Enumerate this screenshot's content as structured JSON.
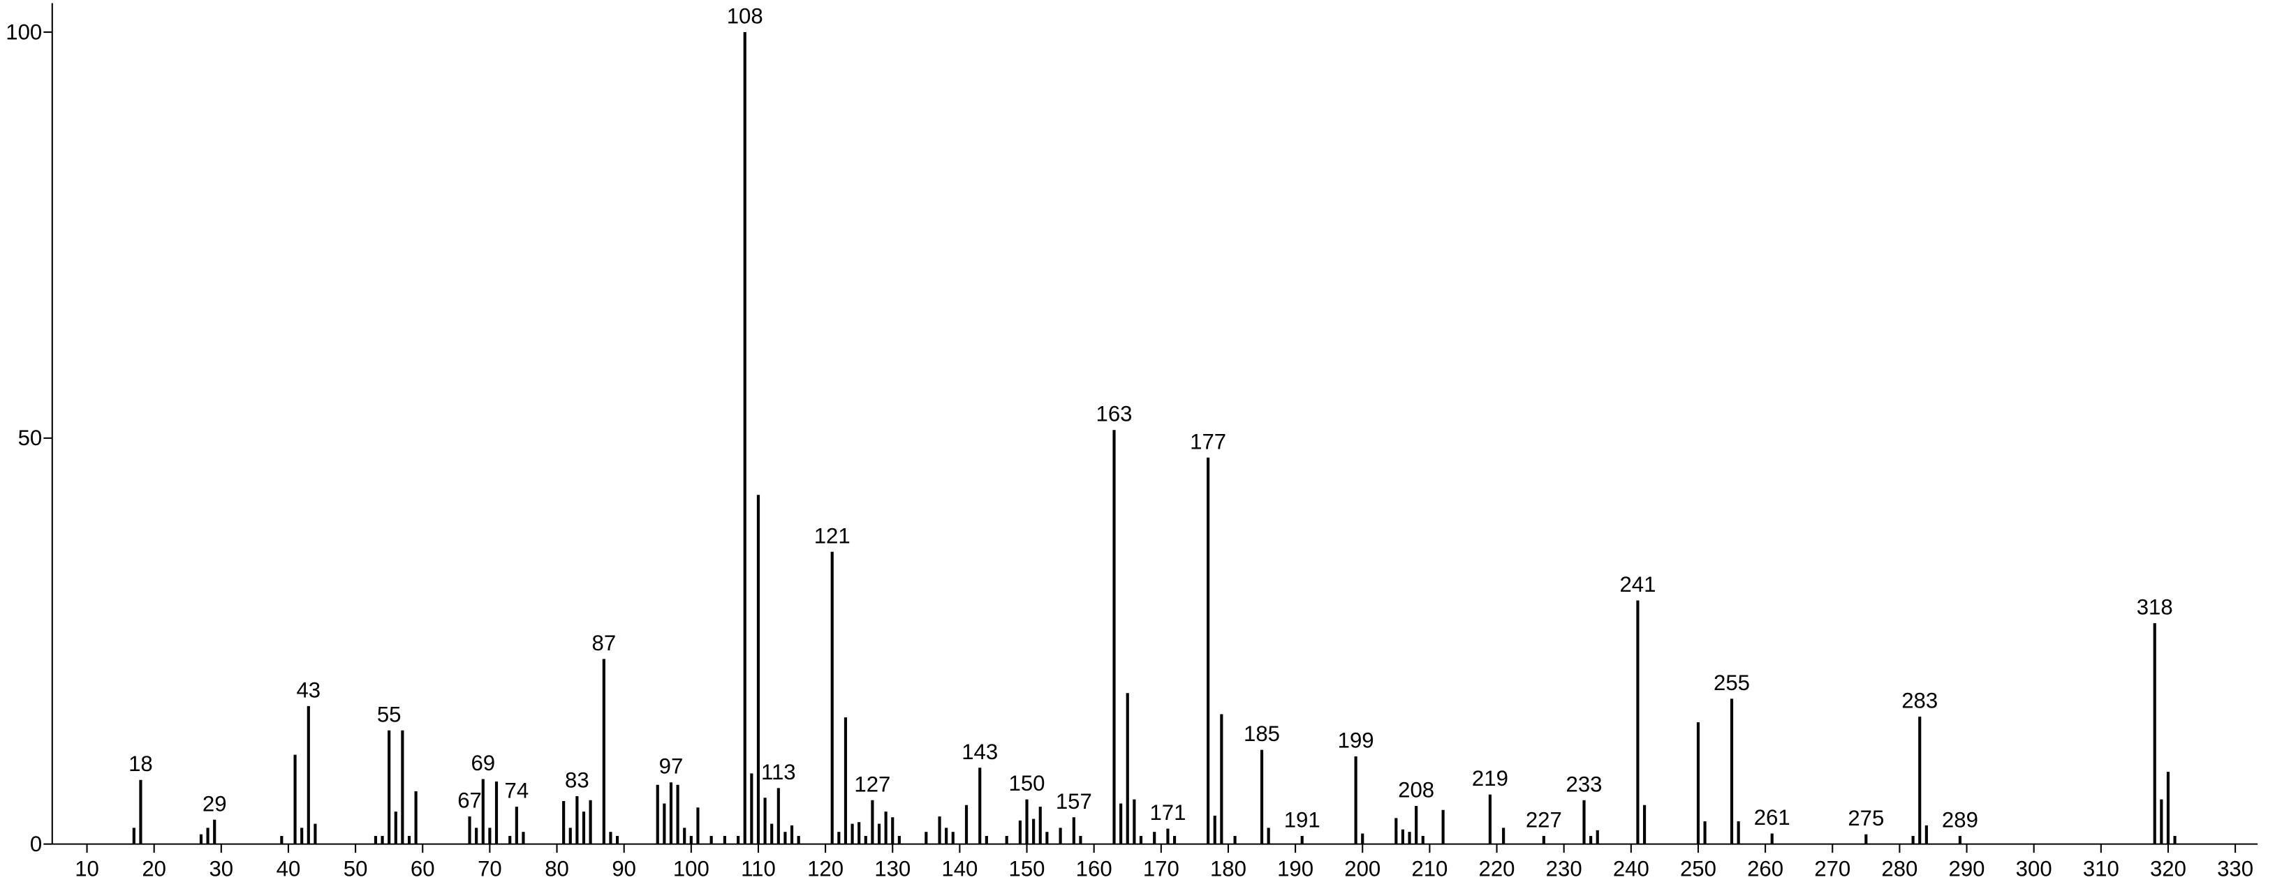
{
  "chart_data": {
    "type": "stem",
    "x": [
      17,
      18,
      27,
      28,
      29,
      39,
      41,
      42,
      43,
      44,
      53,
      54,
      55,
      56,
      57,
      58,
      59,
      67,
      68,
      69,
      70,
      71,
      73,
      74,
      75,
      81,
      82,
      83,
      84,
      85,
      87,
      88,
      89,
      95,
      96,
      97,
      98,
      99,
      100,
      101,
      103,
      105,
      107,
      108,
      109,
      110,
      111,
      112,
      113,
      114,
      115,
      116,
      121,
      122,
      123,
      124,
      125,
      126,
      127,
      128,
      129,
      130,
      131,
      135,
      137,
      138,
      139,
      141,
      143,
      144,
      147,
      149,
      150,
      151,
      152,
      153,
      155,
      157,
      158,
      163,
      164,
      165,
      166,
      167,
      169,
      171,
      172,
      177,
      178,
      179,
      181,
      185,
      186,
      191,
      199,
      200,
      205,
      206,
      207,
      208,
      209,
      212,
      219,
      221,
      227,
      233,
      234,
      235,
      241,
      242,
      250,
      251,
      255,
      256,
      261,
      275,
      282,
      283,
      284,
      289,
      318,
      319,
      320,
      321
    ],
    "values": [
      2,
      7.9,
      1.2,
      2,
      3,
      1,
      11,
      2,
      17,
      2.5,
      1,
      1,
      14,
      4,
      14,
      1,
      6.5,
      3.4,
      2,
      8,
      2,
      7.7,
      1,
      4.6,
      1.5,
      5.3,
      2,
      5.9,
      4,
      5.4,
      22.8,
      1.5,
      1,
      7.3,
      5,
      7.6,
      7.3,
      2,
      1,
      4.5,
      1,
      1,
      1,
      100,
      8.7,
      43,
      5.7,
      2.5,
      6.9,
      1.5,
      2.3,
      1,
      36,
      1.5,
      15.6,
      2.5,
      2.7,
      1,
      5.4,
      2.5,
      4,
      3.3,
      1,
      1.5,
      3.4,
      2,
      1.5,
      4.8,
      9.4,
      1,
      1,
      2.9,
      5.5,
      3.1,
      4.6,
      1.5,
      2,
      3.3,
      1,
      51,
      5,
      18.6,
      5.5,
      1,
      1.5,
      1.9,
      1,
      47.6,
      3.5,
      16,
      1,
      11.6,
      2,
      1,
      10.8,
      1.3,
      3.2,
      1.8,
      1.5,
      4.7,
      1,
      4.2,
      6.1,
      2,
      1,
      5.4,
      1,
      1.7,
      30,
      4.8,
      15,
      2.8,
      17.9,
      2.8,
      1.3,
      1.2,
      1,
      15.7,
      2.3,
      1,
      27.2,
      5.5,
      8.9,
      1
    ],
    "annotations": [
      18,
      29,
      43,
      55,
      67,
      69,
      74,
      83,
      87,
      97,
      108,
      113,
      121,
      127,
      143,
      150,
      157,
      163,
      171,
      177,
      185,
      191,
      199,
      208,
      219,
      227,
      233,
      241,
      255,
      261,
      275,
      283,
      289,
      318
    ],
    "color": "#000000",
    "xlim": [
      5,
      333
    ],
    "xticks": [
      10,
      20,
      30,
      40,
      50,
      60,
      70,
      80,
      90,
      100,
      110,
      120,
      130,
      140,
      150,
      160,
      170,
      180,
      190,
      200,
      210,
      220,
      230,
      240,
      250,
      260,
      270,
      280,
      290,
      300,
      310,
      320,
      330
    ],
    "ylim": [
      0,
      100
    ],
    "yticks": [
      0,
      50,
      100
    ]
  }
}
